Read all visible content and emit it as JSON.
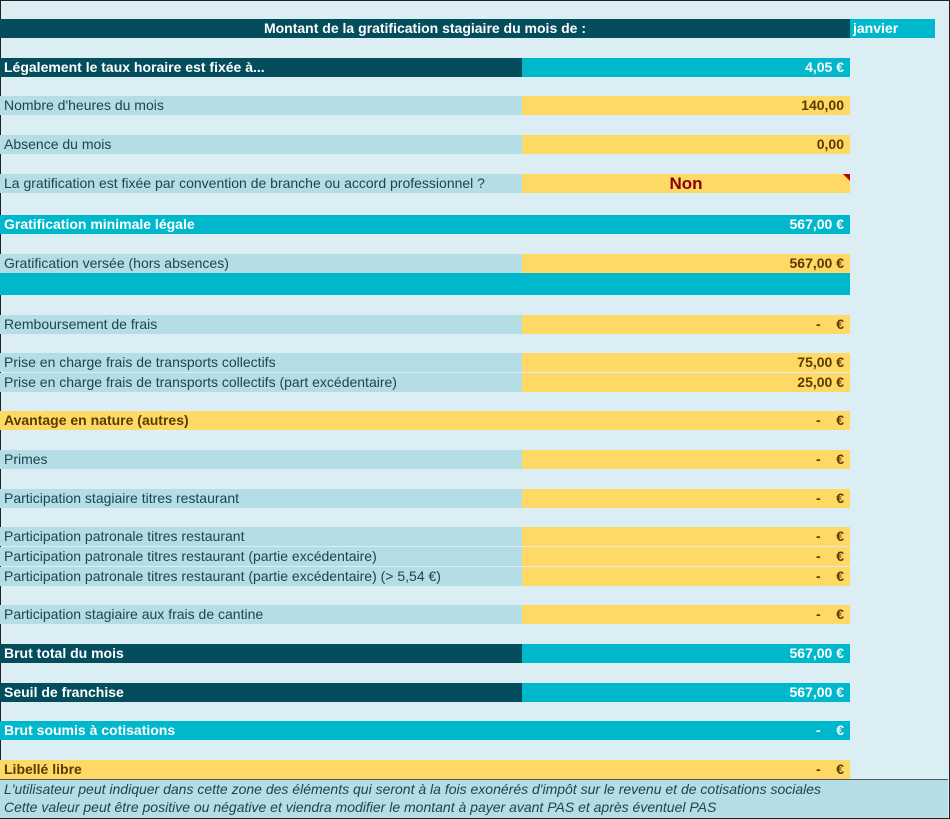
{
  "header": {
    "title": "Montant de la gratification stagiaire du mois de :",
    "month": "janvier"
  },
  "rows": [
    {
      "label": "Légalement le taux horaire est fixée à...",
      "value": "4,05 €",
      "style": "dark-cyan"
    },
    {
      "label": "Nombre d'heures du mois",
      "value": "140,00",
      "style": "light-yellow"
    },
    {
      "label": "Absence du mois",
      "value": "0,00",
      "style": "light-yellow"
    },
    {
      "label": "La gratification est fixée par convention de branche ou accord professionnel ?",
      "value": "Non",
      "style": "light-select"
    },
    {
      "label": "Gratification minimale légale",
      "value": "567,00 €",
      "style": "cyan-cyan"
    },
    {
      "label": "Gratification versée (hors absences)",
      "value": "567,00 €",
      "style": "light-yellow"
    },
    {
      "label": "Remboursement de frais",
      "value": "-    €",
      "style": "light-yellow"
    },
    {
      "label": "Prise en charge frais de transports collectifs",
      "value": "75,00 €",
      "style": "light-yellow"
    },
    {
      "label": "Prise en charge frais de transports collectifs (part excédentaire)",
      "value": "25,00 €",
      "style": "light-yellow"
    },
    {
      "label": "Avantage en nature (autres)",
      "value": "-    €",
      "style": "yellow-yellow"
    },
    {
      "label": "Primes",
      "value": "-    €",
      "style": "light-yellow"
    },
    {
      "label": "Participation stagiaire titres restaurant",
      "value": "-    €",
      "style": "light-yellow"
    },
    {
      "label": "Participation patronale titres restaurant",
      "value": "-    €",
      "style": "light-yellow"
    },
    {
      "label": "Participation patronale titres restaurant (partie excédentaire)",
      "value": "-    €",
      "style": "light-yellow"
    },
    {
      "label": "Participation patronale titres restaurant (partie excédentaire) (> 5,54 €)",
      "value": "-    €",
      "style": "light-yellow"
    },
    {
      "label": "Participation stagiaire aux frais de cantine",
      "value": "-    €",
      "style": "light-yellow"
    },
    {
      "label": "Brut total du mois",
      "value": "567,00 €",
      "style": "dark-cyan"
    },
    {
      "label": "Seuil de franchise",
      "value": "567,00 €",
      "style": "dark-cyan"
    },
    {
      "label": "Brut soumis à cotisations",
      "value": "-    €",
      "style": "cyan-cyan"
    },
    {
      "label": "Libellé libre",
      "value": "-    €",
      "style": "yellow-yellow"
    }
  ],
  "note": {
    "line1": "L'utilisateur peut indiquer dans cette zone des éléments qui seront à la fois exonérés d'impôt sur le revenu et de cotisations sociales",
    "line2": "Cette valeur peut être positive ou négative et viendra modifier le montant à payer avant PAS et après éventuel PAS"
  },
  "colors": {
    "dark": "#034d5c",
    "cyan": "#00b8cc",
    "light": "#b5dde6",
    "yellow": "#ffd966",
    "background": "#dbeef3"
  }
}
